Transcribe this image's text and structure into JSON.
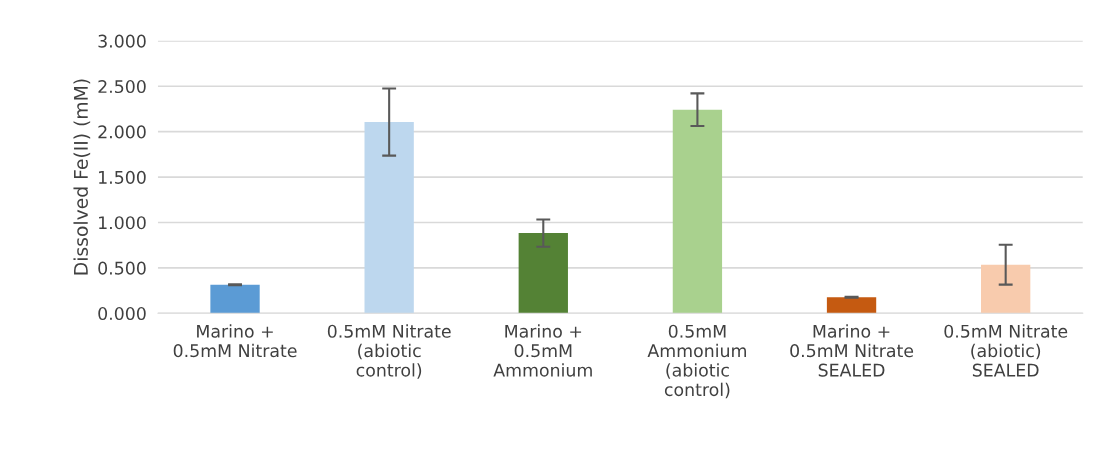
{
  "chart_data": {
    "type": "bar",
    "ylabel": "Dissolved Fe(II) (mM)",
    "categories": [
      "Marino +\n0.5mM Nitrate",
      "0.5mM Nitrate\n(abiotic\ncontrol)",
      "Marino +\n0.5mM\nAmmonium",
      "0.5mM\nAmmonium\n(abiotic\ncontrol)",
      "Marino +\n0.5mM Nitrate\nSEALED",
      "0.5mM Nitrate\n(abiotic)\nSEALED"
    ],
    "values": [
      0.315,
      2.106,
      0.883,
      2.242,
      0.176,
      0.535
    ],
    "errors": [
      0.005,
      0.37,
      0.15,
      0.18,
      0.005,
      0.22
    ],
    "colors": [
      "#5b9bd5",
      "#bdd7ee",
      "#548235",
      "#a9d18e",
      "#c55a11",
      "#f8cbad"
    ],
    "ylim": [
      0,
      3
    ],
    "yticks": [
      {
        "value": 0,
        "label": "0.000"
      },
      {
        "value": 0.5,
        "label": "0.500"
      },
      {
        "value": 1,
        "label": "1.000"
      },
      {
        "value": 1.5,
        "label": "1.500"
      },
      {
        "value": 2,
        "label": "2.000"
      },
      {
        "value": 2.5,
        "label": "2.500"
      },
      {
        "value": 3,
        "label": "3.000"
      }
    ],
    "grid": "y",
    "legend": false
  }
}
